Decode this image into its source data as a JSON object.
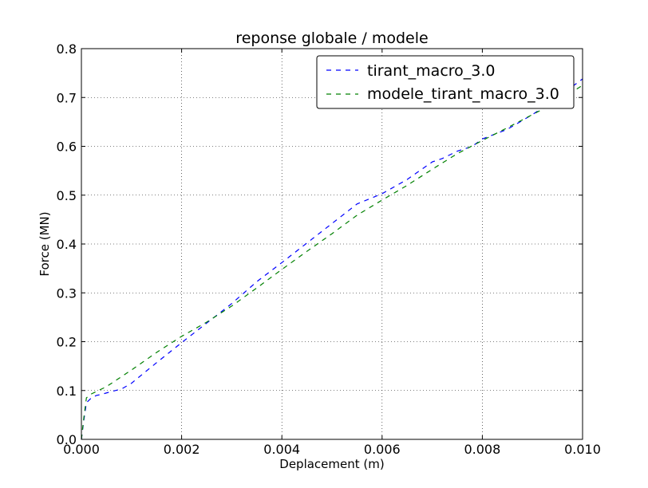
{
  "chart_data": {
    "type": "line",
    "title": "reponse globale / modele",
    "xlabel": "Deplacement (m)",
    "ylabel": "Force (MN)",
    "xlim": [
      0.0,
      0.01
    ],
    "ylim": [
      0.0,
      0.8
    ],
    "x_ticks": [
      "0.000",
      "0.002",
      "0.004",
      "0.006",
      "0.008",
      "0.010"
    ],
    "y_ticks": [
      "0.0",
      "0.1",
      "0.2",
      "0.3",
      "0.4",
      "0.5",
      "0.6",
      "0.7",
      "0.8"
    ],
    "grid": true,
    "legend_position": "top-right",
    "series": [
      {
        "name": "tirant_macro_3.0",
        "color": "#0000ff",
        "style": "dashed",
        "x": [
          0.0,
          5e-05,
          0.0001,
          0.0002,
          0.0003,
          0.0004,
          0.0006,
          0.0008,
          0.001,
          0.0015,
          0.002,
          0.0025,
          0.003,
          0.0035,
          0.004,
          0.0045,
          0.005,
          0.0055,
          0.006,
          0.0065,
          0.007,
          0.0072,
          0.0075,
          0.0078,
          0.008,
          0.0085,
          0.009,
          0.0095,
          0.01
        ],
        "y": [
          0.0,
          0.04,
          0.075,
          0.085,
          0.09,
          0.092,
          0.098,
          0.103,
          0.115,
          0.157,
          0.198,
          0.238,
          0.278,
          0.323,
          0.362,
          0.402,
          0.442,
          0.482,
          0.503,
          0.532,
          0.568,
          0.575,
          0.59,
          0.6,
          0.615,
          0.635,
          0.665,
          0.7,
          0.738
        ]
      },
      {
        "name": "modele_tirant_macro_3.0",
        "color": "#008000",
        "style": "dashed",
        "x": [
          0.0,
          5e-05,
          0.0001,
          0.0002,
          0.0003,
          0.0005,
          0.001,
          0.0015,
          0.002,
          0.0025,
          0.003,
          0.0035,
          0.004,
          0.0045,
          0.005,
          0.0055,
          0.006,
          0.0065,
          0.007,
          0.0075,
          0.008,
          0.0085,
          0.009,
          0.0095,
          0.01
        ],
        "y": [
          0.0,
          0.045,
          0.085,
          0.093,
          0.098,
          0.108,
          0.142,
          0.178,
          0.211,
          0.24,
          0.273,
          0.31,
          0.348,
          0.385,
          0.421,
          0.459,
          0.49,
          0.52,
          0.553,
          0.585,
          0.612,
          0.638,
          0.665,
          0.692,
          0.725
        ]
      }
    ]
  }
}
